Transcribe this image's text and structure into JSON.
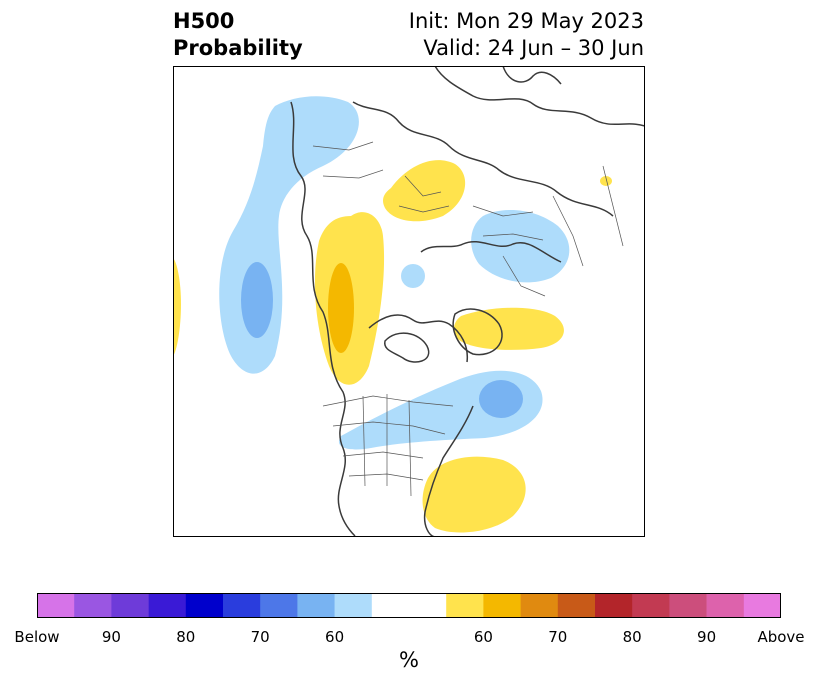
{
  "header": {
    "left_line1": "H500",
    "left_line2": "Probability",
    "right_line1": "Init: Mon 29 May 2023",
    "right_line2": "Valid: 24 Jun – 30 Jun"
  },
  "colorbar": {
    "colors": [
      "#d673e8",
      "#9a56e2",
      "#6e3bd9",
      "#3a1ad6",
      "#0000cc",
      "#2a3ddd",
      "#4d77e8",
      "#78b3f2",
      "#aedcfb",
      "#ffffff",
      "#ffffff",
      "#ffe34d",
      "#f4b800",
      "#e08a10",
      "#c85a18",
      "#b3252a",
      "#c23a52",
      "#cc4e7c",
      "#dd62ac",
      "#e87ae0"
    ],
    "tick_labels": [
      "Below",
      "90",
      "80",
      "70",
      "60",
      "60",
      "70",
      "80",
      "90",
      "Above"
    ],
    "unit": "%"
  },
  "legend_colors": {
    "below_60": "#aedcfb",
    "below_70": "#78b3f2",
    "above_60": "#ffe34d",
    "above_70": "#f4b800",
    "coastline": "#3a3a3a"
  }
}
